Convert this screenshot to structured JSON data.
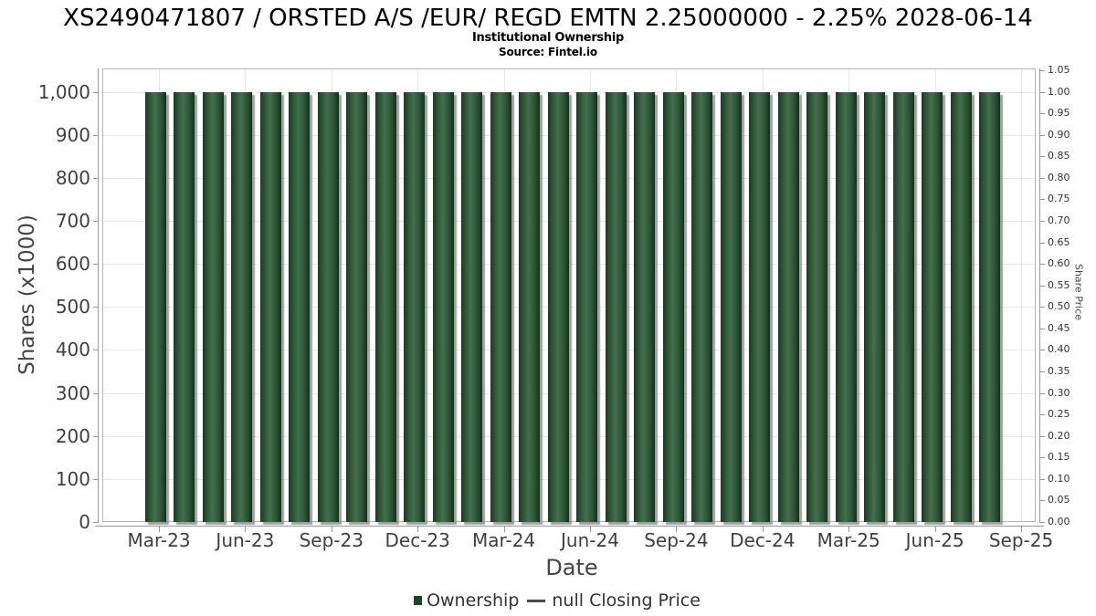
{
  "header": {
    "title": "XS2490471807 / ORSTED A/S /EUR/ REGD EMTN 2.25000000 - 2.25% 2028-06-14",
    "subtitle": "Institutional Ownership",
    "source": "Source: Fintel.io"
  },
  "chart_data": {
    "type": "bar",
    "title": "XS2490471807 / ORSTED A/S /EUR/ REGD EMTN 2.25000000 - 2.25% 2028-06-14",
    "subtitle": "Institutional Ownership",
    "source": "Source: Fintel.io",
    "xlabel": "Date",
    "ylabel_left": "Shares (x1000)",
    "ylabel_right": "Share Price",
    "ylim_left": [
      0,
      1000
    ],
    "ylim_right": [
      0,
      1.05
    ],
    "grid": true,
    "legend_position": "bottom",
    "x_tick_labels": [
      "Mar-23",
      "Jun-23",
      "Sep-23",
      "Dec-23",
      "Mar-24",
      "Jun-24",
      "Sep-24",
      "Dec-24",
      "Mar-25",
      "Jun-25",
      "Sep-25"
    ],
    "ytick_labels_left": [
      "0",
      "100",
      "200",
      "300",
      "400",
      "500",
      "600",
      "700",
      "800",
      "900",
      "1,000"
    ],
    "ytick_labels_right": [
      "0.00",
      "0.05",
      "0.10",
      "0.15",
      "0.20",
      "0.25",
      "0.30",
      "0.35",
      "0.40",
      "0.45",
      "0.50",
      "0.55",
      "0.60",
      "0.65",
      "0.70",
      "0.75",
      "0.80",
      "0.85",
      "0.90",
      "0.95",
      "1.00",
      "1.05"
    ],
    "categories": [
      "Mar-23",
      "Apr-23",
      "May-23",
      "Jun-23",
      "Jul-23",
      "Aug-23",
      "Sep-23",
      "Oct-23",
      "Nov-23",
      "Dec-23",
      "Jan-24",
      "Feb-24",
      "Mar-24",
      "Apr-24",
      "May-24",
      "Jun-24",
      "Jul-24",
      "Aug-24",
      "Sep-24",
      "Oct-24",
      "Nov-24",
      "Dec-24",
      "Jan-25",
      "Feb-25",
      "Mar-25",
      "Apr-25",
      "May-25",
      "Jun-25",
      "Jul-25",
      "Aug-25"
    ],
    "series": [
      {
        "name": "Ownership",
        "type": "bar",
        "color": "#1d4628",
        "values": [
          1000,
          1000,
          1000,
          1000,
          1000,
          1000,
          1000,
          1000,
          1000,
          1000,
          1000,
          1000,
          1000,
          1000,
          1000,
          1000,
          1000,
          1000,
          1000,
          1000,
          1000,
          1000,
          1000,
          1000,
          1000,
          1000,
          1000,
          1000,
          1000,
          1000
        ]
      },
      {
        "name": "null Closing Price",
        "type": "line",
        "color": "#4a4a4a",
        "values": []
      }
    ]
  }
}
